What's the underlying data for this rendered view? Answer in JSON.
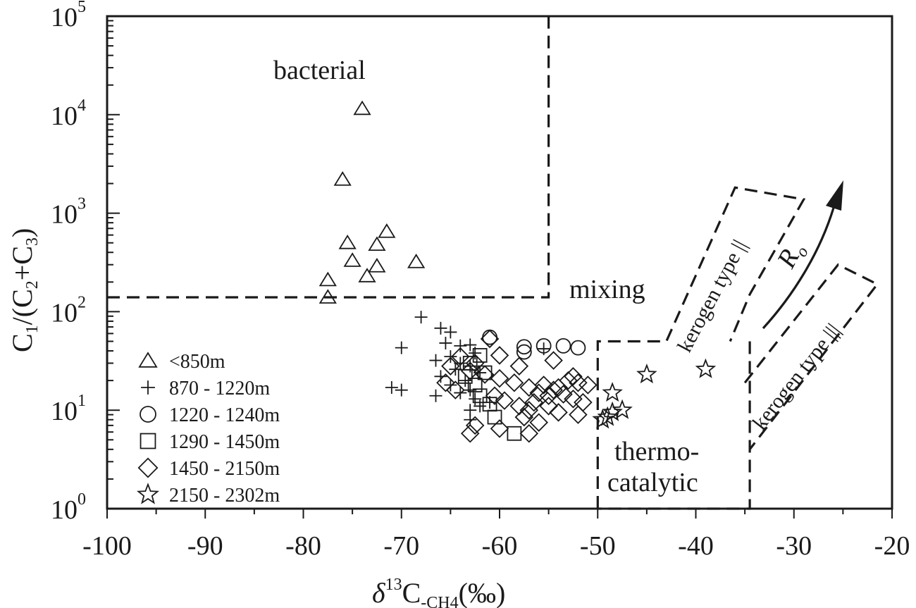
{
  "chart_data": {
    "type": "scatter",
    "xlabel": {
      "delta": "δ",
      "sup": "13",
      "main": "C",
      "sub": "-CH4",
      "unit": "(‰)"
    },
    "ylabel": {
      "c": "C",
      "s1": "1",
      "mid": "/(C",
      "s2": "2",
      "plus": "+C",
      "s3": "3",
      "close": ")"
    },
    "xlim": [
      -100,
      -20
    ],
    "ylim": [
      1,
      100000
    ],
    "yscale": "log",
    "x_ticks": [
      -100,
      -90,
      -80,
      -70,
      -60,
      -50,
      -40,
      -30,
      -20
    ],
    "y_ticks": [
      {
        "value": 1,
        "base": "10",
        "exp": "0"
      },
      {
        "value": 10,
        "base": "10",
        "exp": "1"
      },
      {
        "value": 100,
        "base": "10",
        "exp": "2"
      },
      {
        "value": 1000,
        "base": "10",
        "exp": "3"
      },
      {
        "value": 10000,
        "base": "10",
        "exp": "4"
      },
      {
        "value": 100000,
        "base": "10",
        "exp": "5"
      }
    ],
    "grid": false,
    "legend_position": "bottom-left",
    "annotations": {
      "bacterial": "bacterial",
      "mixing": "mixing",
      "thermo1": "thermo-",
      "thermo2": "catalytic",
      "kerogen2": "kerogen type ||",
      "kerogen3": "kerogen type |||",
      "ro_main": "R",
      "ro_sub": "o"
    },
    "series": [
      {
        "name": "<850m",
        "marker": "triangle",
        "points": [
          [
            -74,
            11500
          ],
          [
            -76,
            2200
          ],
          [
            -71.5,
            650
          ],
          [
            -75.5,
            500
          ],
          [
            -72.5,
            480
          ],
          [
            -68.5,
            320
          ],
          [
            -75,
            330
          ],
          [
            -72.5,
            290
          ],
          [
            -73.5,
            230
          ],
          [
            -77.5,
            210
          ],
          [
            -77.5,
            140
          ]
        ]
      },
      {
        "name": "870 - 1220m",
        "marker": "plus",
        "points": [
          [
            -68,
            88
          ],
          [
            -66,
            68
          ],
          [
            -65,
            62
          ],
          [
            -70,
            43
          ],
          [
            -65.5,
            48
          ],
          [
            -64,
            45
          ],
          [
            -63,
            46
          ],
          [
            -66.5,
            32
          ],
          [
            -65,
            35
          ],
          [
            -64,
            30
          ],
          [
            -63,
            28
          ],
          [
            -62.5,
            38
          ],
          [
            -64.5,
            26
          ],
          [
            -66,
            22
          ],
          [
            -63.5,
            20
          ],
          [
            -62,
            24
          ],
          [
            -65,
            18
          ],
          [
            -63,
            16
          ],
          [
            -64,
            15
          ],
          [
            -66.5,
            14
          ],
          [
            -62.5,
            13
          ],
          [
            -61,
            12
          ],
          [
            -63,
            10
          ],
          [
            -62,
            11
          ],
          [
            -71,
            17
          ],
          [
            -70,
            16
          ],
          [
            -63,
            8
          ],
          [
            -55.5,
            42
          ]
        ]
      },
      {
        "name": "1220 - 1240m",
        "marker": "circle",
        "points": [
          [
            -61,
            55
          ],
          [
            -57.5,
            44
          ],
          [
            -55.5,
            45
          ],
          [
            -53.5,
            45
          ],
          [
            -52,
            43
          ],
          [
            -57.5,
            39
          ]
        ]
      },
      {
        "name": "1290 - 1450m",
        "marker": "square",
        "points": [
          [
            -58.5,
            5.8
          ],
          [
            -60.5,
            8.5
          ],
          [
            -61,
            11.5
          ],
          [
            -62,
            14
          ],
          [
            -62.5,
            18
          ],
          [
            -63.5,
            22
          ],
          [
            -61.5,
            24
          ],
          [
            -63,
            30
          ],
          [
            -62,
            36
          ]
        ]
      },
      {
        "name": "1450 - 2150m",
        "marker": "diamond",
        "points": [
          [
            -61,
            53
          ],
          [
            -60,
            36
          ],
          [
            -64,
            35
          ],
          [
            -62.5,
            30
          ],
          [
            -65,
            28
          ],
          [
            -63,
            25
          ],
          [
            -61.5,
            23
          ],
          [
            -60,
            21
          ],
          [
            -58.5,
            19
          ],
          [
            -57,
            17
          ],
          [
            -55.5,
            18
          ],
          [
            -54,
            17
          ],
          [
            -53,
            20
          ],
          [
            -52,
            19
          ],
          [
            -51,
            18
          ],
          [
            -56,
            15
          ],
          [
            -55,
            14
          ],
          [
            -54.5,
            16
          ],
          [
            -53.5,
            14.5
          ],
          [
            -52.5,
            13
          ],
          [
            -51.5,
            12
          ],
          [
            -60.5,
            14
          ],
          [
            -59.5,
            12.5
          ],
          [
            -58,
            11
          ],
          [
            -57,
            10
          ],
          [
            -56.5,
            12
          ],
          [
            -55,
            11
          ],
          [
            -54,
            9.5
          ],
          [
            -52,
            9
          ],
          [
            -57.5,
            8.5
          ],
          [
            -56,
            7.5
          ],
          [
            -62.5,
            7
          ],
          [
            -60,
            6.5
          ],
          [
            -63,
            5.8
          ],
          [
            -57,
            5.8
          ],
          [
            -64.5,
            16
          ],
          [
            -65.5,
            19
          ],
          [
            -58,
            28
          ],
          [
            -54.5,
            32
          ],
          [
            -52.5,
            22
          ]
        ]
      },
      {
        "name": "2150 - 2302m",
        "marker": "star",
        "points": [
          [
            -39,
            26
          ],
          [
            -45,
            23
          ],
          [
            -48.5,
            15
          ],
          [
            -47.5,
            10
          ],
          [
            -48.5,
            9.5
          ],
          [
            -49,
            8.5
          ],
          [
            -49.5,
            8
          ]
        ]
      }
    ]
  }
}
